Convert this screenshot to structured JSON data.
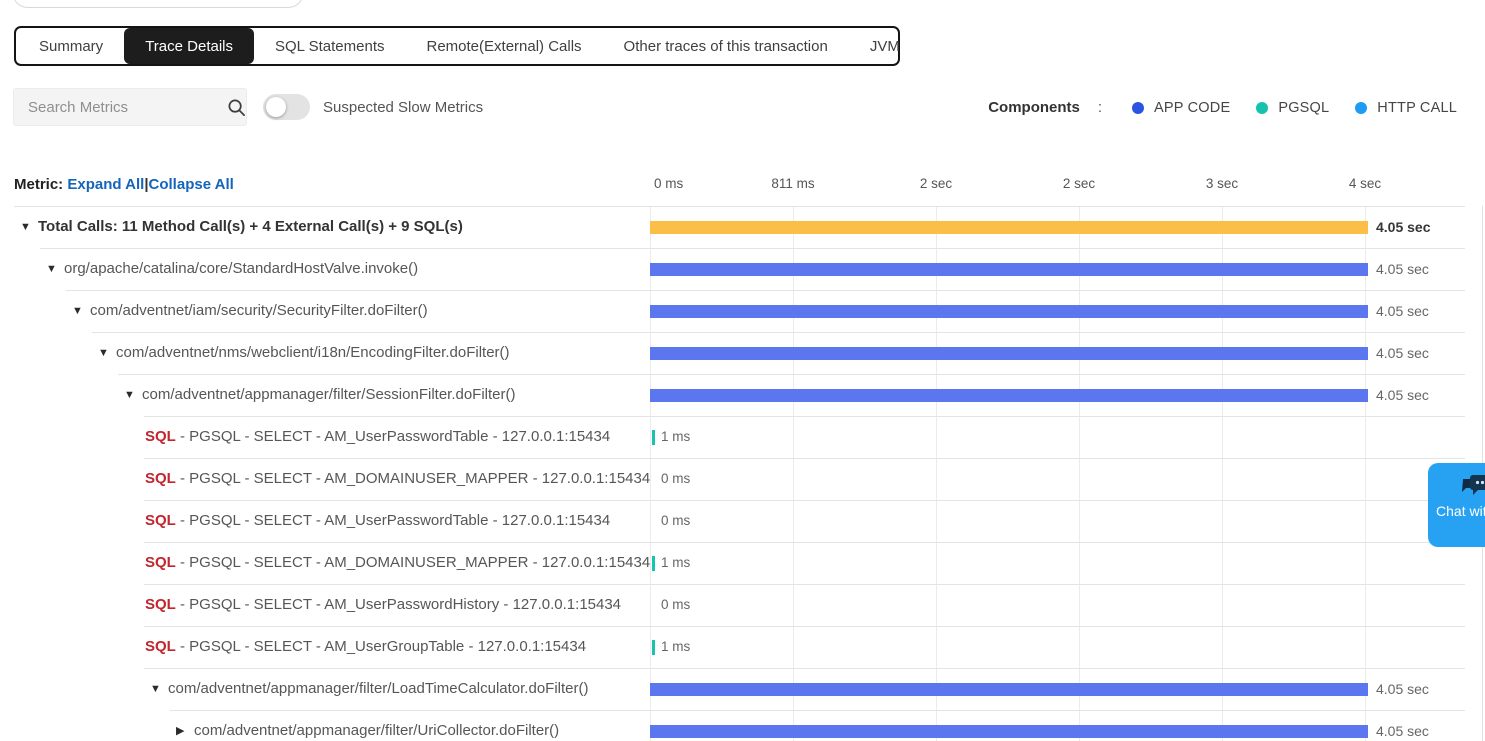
{
  "tabs": {
    "items": [
      {
        "label": "Summary",
        "active": false
      },
      {
        "label": "Trace Details",
        "active": true
      },
      {
        "label": "SQL Statements",
        "active": false
      },
      {
        "label": "Remote(External) Calls",
        "active": false
      },
      {
        "label": "Other traces of this transaction",
        "active": false
      },
      {
        "label": "JVM",
        "active": false
      }
    ]
  },
  "filters": {
    "search_placeholder": "Search Metrics",
    "toggle_label": "Suspected Slow Metrics",
    "toggle_on": false
  },
  "legend": {
    "title": "Components",
    "colon": ":",
    "items": [
      {
        "label": "APP CODE",
        "color": "#2b54e2"
      },
      {
        "label": "PGSQL",
        "color": "#16c2ad"
      },
      {
        "label": "HTTP CALL",
        "color": "#1f9bf3"
      }
    ]
  },
  "metric_header": {
    "label": "Metric: ",
    "expand_all": "Expand All",
    "pipe": "|",
    "collapse_all": "Collapse All"
  },
  "timeline": {
    "ticks": [
      "0 ms",
      "811 ms",
      "2 sec",
      "2 sec",
      "3 sec",
      "4 sec"
    ]
  },
  "colors": {
    "bar_orange": "#fbbf47",
    "bar_blue": "#5b76ee",
    "bar_teal": "#17c4b0",
    "sql_red": "#c2262e"
  },
  "trace": {
    "rows": [
      {
        "depth": 0,
        "expander": "expanded",
        "bold": true,
        "label": "Total Calls: 11 Method Call(s) + 4 External Call(s) + 9 SQL(s)",
        "bar": "full",
        "bar_color": "orange",
        "duration": "4.05 sec",
        "duration_bold": true
      },
      {
        "depth": 1,
        "expander": "expanded",
        "label": "org/apache/catalina/core/StandardHostValve.invoke()",
        "bar": "full",
        "bar_color": "blue",
        "duration": "4.05 sec"
      },
      {
        "depth": 2,
        "expander": "expanded",
        "label": "com/adventnet/iam/security/SecurityFilter.doFilter()",
        "bar": "full",
        "bar_color": "blue",
        "duration": "4.05 sec"
      },
      {
        "depth": 3,
        "expander": "expanded",
        "label": "com/adventnet/nms/webclient/i18n/EncodingFilter.doFilter()",
        "bar": "full",
        "bar_color": "blue",
        "duration": "4.05 sec"
      },
      {
        "depth": 4,
        "expander": "expanded",
        "label": "com/adventnet/appmanager/filter/SessionFilter.doFilter()",
        "bar": "full",
        "bar_color": "blue",
        "duration": "4.05 sec"
      },
      {
        "depth": 5,
        "prefix": "SQL",
        "label": " - PGSQL - SELECT - AM_UserPasswordTable - 127.0.0.1:15434",
        "bar": "tick",
        "inline_value": "1 ms"
      },
      {
        "depth": 5,
        "prefix": "SQL",
        "label": " - PGSQL - SELECT - AM_DOMAINUSER_MAPPER - 127.0.0.1:15434",
        "bar": "none",
        "inline_value": "0 ms"
      },
      {
        "depth": 5,
        "prefix": "SQL",
        "label": " - PGSQL - SELECT - AM_UserPasswordTable - 127.0.0.1:15434",
        "bar": "none",
        "inline_value": "0 ms"
      },
      {
        "depth": 5,
        "prefix": "SQL",
        "label": " - PGSQL - SELECT - AM_DOMAINUSER_MAPPER - 127.0.0.1:15434",
        "bar": "tick",
        "inline_value": "1 ms"
      },
      {
        "depth": 5,
        "prefix": "SQL",
        "label": " - PGSQL - SELECT - AM_UserPasswordHistory - 127.0.0.1:15434",
        "bar": "none",
        "inline_value": "0 ms"
      },
      {
        "depth": 5,
        "prefix": "SQL",
        "label": " - PGSQL - SELECT - AM_UserGroupTable - 127.0.0.1:15434",
        "bar": "tick",
        "inline_value": "1 ms"
      },
      {
        "depth": 5,
        "expander": "expanded",
        "label": "com/adventnet/appmanager/filter/LoadTimeCalculator.doFilter()",
        "bar": "full",
        "bar_color": "blue",
        "duration": "4.05 sec"
      },
      {
        "depth": 6,
        "expander": "collapsed",
        "label": "com/adventnet/appmanager/filter/UriCollector.doFilter()",
        "bar": "full",
        "bar_color": "blue",
        "duration": "4.05 sec"
      }
    ]
  },
  "chat": {
    "label": "Chat with us!"
  }
}
